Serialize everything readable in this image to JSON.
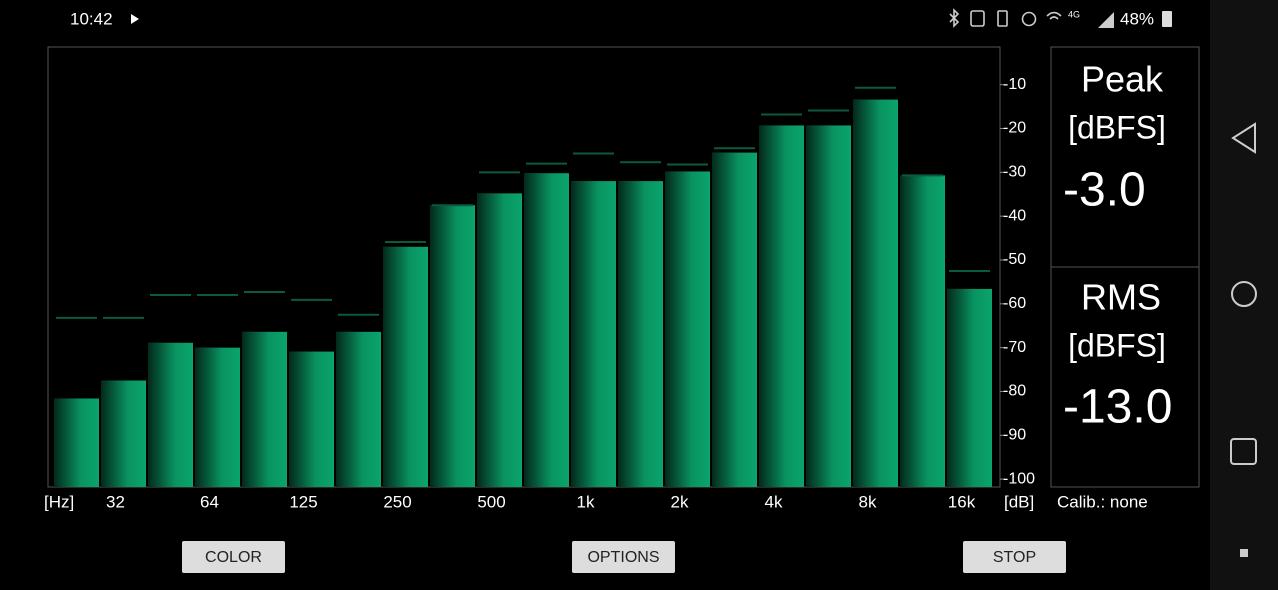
{
  "status_bar": {
    "time": "10:42",
    "network": "4G",
    "battery": "48%"
  },
  "chart_data": {
    "type": "bar",
    "categories": [
      null,
      "32",
      null,
      "64",
      null,
      "125",
      null,
      "250",
      null,
      "500",
      null,
      "1k",
      null,
      "2k",
      null,
      "4k",
      null,
      "8k",
      null,
      "16k"
    ],
    "values": [
      -81.6,
      -77.5,
      -68.9,
      -70,
      -66.4,
      -70.9,
      -66.4,
      -47,
      -37.5,
      -34.8,
      -30.2,
      -32,
      -32,
      -29.8,
      -25.5,
      -19.3,
      -19.3,
      -13.4,
      -30.7,
      -56.6
    ],
    "peak_values": [
      -63.2,
      -63.2,
      -58,
      -58,
      -57.3,
      -59.1,
      -62.5,
      -45.9,
      -37.5,
      -30,
      -28,
      -25.7,
      -27.7,
      -28.2,
      -24.5,
      -16.8,
      -15.9,
      -10.7,
      -30.7,
      -52.5
    ],
    "color": "#0aa46c",
    "peak_color": "#0b5a3c",
    "x_unit_label": "[Hz]",
    "y_unit_label": "[dB]",
    "ylim": [
      -101.8,
      -1.4
    ],
    "yticks": [
      -10,
      -20,
      -30,
      -40,
      -50,
      -60,
      -70,
      -80,
      -90,
      -100
    ]
  },
  "meters": [
    {
      "label": "Peak",
      "unit": "[dBFS]",
      "reading": "-3.0"
    },
    {
      "label": "RMS",
      "unit": "[dBFS]",
      "reading": "-13.0"
    }
  ],
  "calibration": "Calib.: none",
  "buttons": [
    "COLOR",
    "OPTIONS",
    "STOP"
  ]
}
